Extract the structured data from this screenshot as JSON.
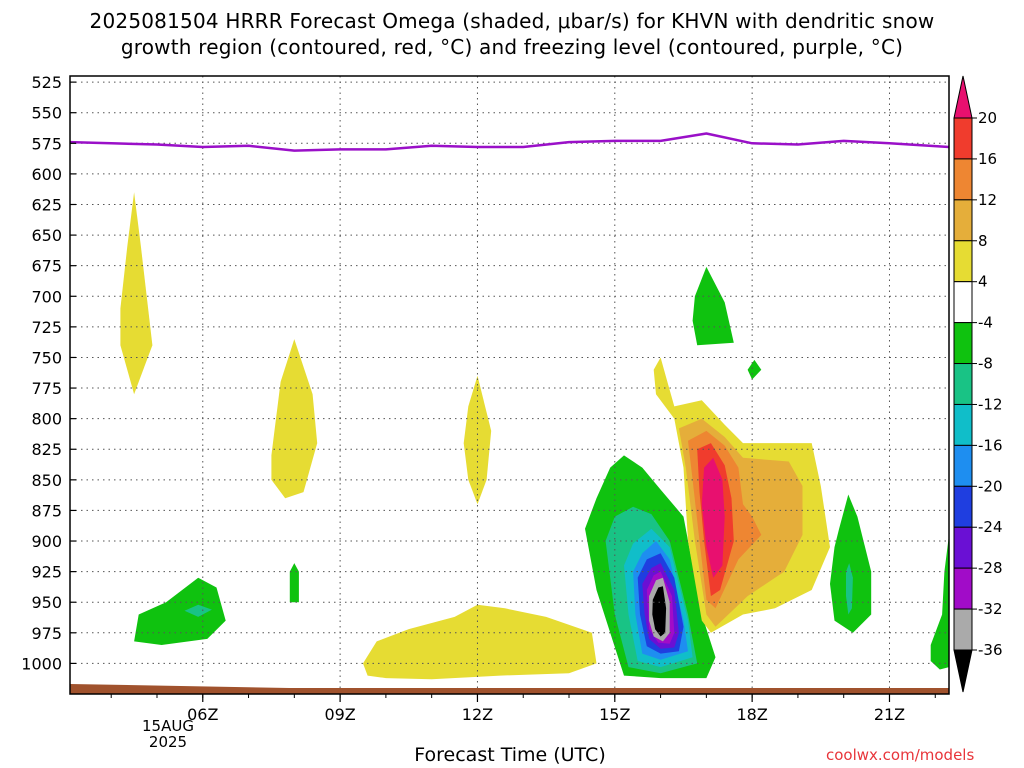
{
  "title_line1": "2025081504 HRRR Forecast Omega (shaded, μbar/s) for KHVN with dendritic snow",
  "title_line2": "growth region (contoured, red, °C) and freezing level (contoured, purple, °C)",
  "xlabel": "Forecast Time (UTC)",
  "date_line1": "15AUG",
  "date_line2": "2025",
  "credit": "coolwx.com/models",
  "chart_data": {
    "type": "heatmap",
    "ylim": [
      1025,
      520
    ],
    "xlim": [
      3.1,
      22.3
    ],
    "ylabel": "",
    "y_ticks": [
      525,
      550,
      575,
      600,
      625,
      650,
      675,
      700,
      725,
      750,
      775,
      800,
      825,
      850,
      875,
      900,
      925,
      950,
      975,
      1000
    ],
    "x_ticks": [
      {
        "hour": 6,
        "label": "06Z"
      },
      {
        "hour": 9,
        "label": "09Z"
      },
      {
        "hour": 12,
        "label": "12Z"
      },
      {
        "hour": 15,
        "label": "15Z"
      },
      {
        "hour": 18,
        "label": "18Z"
      },
      {
        "hour": 21,
        "label": "21Z"
      }
    ],
    "grid": true,
    "freezing_level": {
      "color": "#9a10c8",
      "points": [
        [
          3.1,
          574
        ],
        [
          4,
          575
        ],
        [
          5,
          576
        ],
        [
          6,
          578
        ],
        [
          7,
          577
        ],
        [
          8,
          581
        ],
        [
          9,
          580
        ],
        [
          10,
          580
        ],
        [
          11,
          577
        ],
        [
          12,
          578
        ],
        [
          13,
          578
        ],
        [
          14,
          574
        ],
        [
          15,
          573
        ],
        [
          16,
          573
        ],
        [
          17,
          567
        ],
        [
          18,
          575
        ],
        [
          19,
          576
        ],
        [
          20,
          573
        ],
        [
          21,
          575
        ],
        [
          22.3,
          578
        ]
      ]
    },
    "colorbar": {
      "levels": [
        20,
        16,
        12,
        8,
        4,
        -4,
        -8,
        -12,
        -16,
        -20,
        -24,
        -28,
        -32,
        -36
      ],
      "colors": [
        "#e8106f",
        "#f03c2d",
        "#ee8632",
        "#e5ae3a",
        "#e6dc33",
        "#ffffff",
        "#0fc20f",
        "#19c385",
        "#10bec9",
        "#1e8ef0",
        "#1f3ee0",
        "#6a10d4",
        "#a10cc8",
        "#aaaaaa",
        "#000000"
      ]
    },
    "regions": [
      {
        "value_range": [
          4,
          8
        ],
        "color": "#e6dc33",
        "points": [
          [
            4.2,
            710
          ],
          [
            4.35,
            660
          ],
          [
            4.5,
            615
          ],
          [
            4.65,
            660
          ],
          [
            4.9,
            740
          ],
          [
            4.5,
            780
          ],
          [
            4.2,
            740
          ]
        ]
      },
      {
        "value_range": [
          4,
          8
        ],
        "color": "#e6dc33",
        "points": [
          [
            7.5,
            830
          ],
          [
            7.7,
            770
          ],
          [
            8.0,
            735
          ],
          [
            8.4,
            780
          ],
          [
            8.5,
            820
          ],
          [
            8.2,
            860
          ],
          [
            7.8,
            865
          ],
          [
            7.5,
            850
          ]
        ]
      },
      {
        "value_range": [
          4,
          8
        ],
        "color": "#e6dc33",
        "points": [
          [
            11.7,
            820
          ],
          [
            11.8,
            790
          ],
          [
            12.0,
            765
          ],
          [
            12.3,
            810
          ],
          [
            12.2,
            850
          ],
          [
            12.0,
            870
          ],
          [
            11.8,
            850
          ]
        ]
      },
      {
        "value_range": [
          4,
          8
        ],
        "color": "#e6dc33",
        "points": [
          [
            9.5,
            1000
          ],
          [
            9.8,
            982
          ],
          [
            10.5,
            972
          ],
          [
            11.5,
            962
          ],
          [
            12.0,
            952
          ],
          [
            12.6,
            955
          ],
          [
            13.5,
            962
          ],
          [
            14.5,
            975
          ],
          [
            14.6,
            1000
          ],
          [
            14.0,
            1008
          ],
          [
            12.5,
            1010
          ],
          [
            11.0,
            1013
          ],
          [
            10.0,
            1012
          ],
          [
            9.6,
            1010
          ]
        ]
      },
      {
        "value_range": [
          -8,
          -4
        ],
        "color": "#0fc20f",
        "points": [
          [
            4.6,
            960
          ],
          [
            5.2,
            950
          ],
          [
            5.9,
            930
          ],
          [
            6.3,
            938
          ],
          [
            6.5,
            965
          ],
          [
            6.1,
            980
          ],
          [
            5.1,
            985
          ],
          [
            4.5,
            982
          ]
        ]
      },
      {
        "value_range": [
          -12,
          -8
        ],
        "color": "#19c385",
        "points": [
          [
            5.6,
            957
          ],
          [
            5.9,
            952
          ],
          [
            6.2,
            956
          ],
          [
            5.9,
            962
          ]
        ]
      },
      {
        "value_range": [
          -8,
          -4
        ],
        "color": "#0fc20f",
        "points": [
          [
            7.9,
            925
          ],
          [
            8.0,
            918
          ],
          [
            8.1,
            925
          ],
          [
            8.1,
            950
          ],
          [
            7.9,
            950
          ]
        ]
      },
      {
        "value_range": [
          -8,
          -4
        ],
        "color": "#0fc20f",
        "points": [
          [
            16.75,
            700
          ],
          [
            17.0,
            676
          ],
          [
            17.4,
            705
          ],
          [
            17.6,
            738
          ],
          [
            16.8,
            740
          ],
          [
            16.7,
            720
          ]
        ]
      },
      {
        "value_range": [
          -8,
          -4
        ],
        "color": "#0fc20f",
        "points": [
          [
            17.9,
            760
          ],
          [
            18.05,
            752
          ],
          [
            18.2,
            760
          ],
          [
            18.0,
            768
          ]
        ]
      },
      {
        "value_range": [
          -8,
          -4
        ],
        "color": "#0fc20f",
        "points": [
          [
            14.35,
            890
          ],
          [
            14.6,
            865
          ],
          [
            14.9,
            840
          ],
          [
            15.2,
            830
          ],
          [
            15.6,
            840
          ],
          [
            16.0,
            858
          ],
          [
            16.5,
            880
          ],
          [
            16.9,
            960
          ],
          [
            17.2,
            995
          ],
          [
            17.0,
            1012
          ],
          [
            16.0,
            1012
          ],
          [
            15.2,
            1010
          ],
          [
            14.9,
            975
          ],
          [
            14.6,
            940
          ]
        ]
      },
      {
        "value_range": [
          -12,
          -8
        ],
        "color": "#19c385",
        "points": [
          [
            14.8,
            900
          ],
          [
            15.0,
            880
          ],
          [
            15.4,
            872
          ],
          [
            15.8,
            878
          ],
          [
            16.2,
            900
          ],
          [
            16.6,
            960
          ],
          [
            16.8,
            1000
          ],
          [
            16.0,
            1008
          ],
          [
            15.3,
            1003
          ],
          [
            15.0,
            960
          ]
        ]
      },
      {
        "value_range": [
          -16,
          -12
        ],
        "color": "#10bec9",
        "points": [
          [
            15.2,
            920
          ],
          [
            15.4,
            902
          ],
          [
            15.8,
            890
          ],
          [
            16.2,
            905
          ],
          [
            16.6,
            965
          ],
          [
            16.7,
            995
          ],
          [
            16.0,
            1003
          ],
          [
            15.5,
            998
          ],
          [
            15.3,
            960
          ]
        ]
      },
      {
        "value_range": [
          -20,
          -16
        ],
        "color": "#1e8ef0",
        "points": [
          [
            15.4,
            925
          ],
          [
            15.6,
            910
          ],
          [
            15.9,
            900
          ],
          [
            16.2,
            915
          ],
          [
            16.5,
            965
          ],
          [
            16.6,
            990
          ],
          [
            16.0,
            997
          ],
          [
            15.6,
            992
          ],
          [
            15.45,
            960
          ]
        ]
      },
      {
        "value_range": [
          -24,
          -20
        ],
        "color": "#1f3ee0",
        "points": [
          [
            15.5,
            930
          ],
          [
            15.7,
            915
          ],
          [
            16.0,
            910
          ],
          [
            16.3,
            930
          ],
          [
            16.5,
            970
          ],
          [
            16.4,
            990
          ],
          [
            16.0,
            992
          ],
          [
            15.7,
            986
          ],
          [
            15.55,
            960
          ]
        ]
      },
      {
        "value_range": [
          -28,
          -24
        ],
        "color": "#6a10d4",
        "points": [
          [
            15.6,
            935
          ],
          [
            15.8,
            922
          ],
          [
            16.0,
            918
          ],
          [
            16.3,
            940
          ],
          [
            16.4,
            975
          ],
          [
            16.3,
            987
          ],
          [
            16.0,
            988
          ],
          [
            15.75,
            980
          ],
          [
            15.65,
            960
          ]
        ]
      },
      {
        "value_range": [
          -32,
          -28
        ],
        "color": "#a10cc8",
        "points": [
          [
            15.7,
            940
          ],
          [
            15.85,
            928
          ],
          [
            16.0,
            925
          ],
          [
            16.25,
            945
          ],
          [
            16.3,
            975
          ],
          [
            16.2,
            984
          ],
          [
            15.95,
            983
          ],
          [
            15.75,
            972
          ]
        ]
      },
      {
        "value_range": [
          -36,
          -32
        ],
        "color": "#aaaaaa",
        "points": [
          [
            15.75,
            945
          ],
          [
            15.9,
            932
          ],
          [
            16.05,
            930
          ],
          [
            16.2,
            950
          ],
          [
            16.2,
            975
          ],
          [
            16.05,
            982
          ],
          [
            15.85,
            978
          ],
          [
            15.75,
            965
          ]
        ]
      },
      {
        "value_range": [
          -40,
          -36
        ],
        "color": "#000000",
        "points": [
          [
            15.83,
            948
          ],
          [
            15.95,
            938
          ],
          [
            16.05,
            937
          ],
          [
            16.12,
            955
          ],
          [
            16.1,
            975
          ],
          [
            16.0,
            978
          ],
          [
            15.88,
            972
          ],
          [
            15.82,
            960
          ]
        ]
      },
      {
        "value_range": [
          4,
          8
        ],
        "color": "#e6dc33",
        "points": [
          [
            15.85,
            760
          ],
          [
            16.0,
            750
          ],
          [
            16.15,
            770
          ],
          [
            16.3,
            790
          ],
          [
            16.9,
            785
          ],
          [
            17.4,
            805
          ],
          [
            17.8,
            820
          ],
          [
            19.3,
            820
          ],
          [
            19.5,
            855
          ],
          [
            19.7,
            905
          ],
          [
            19.3,
            940
          ],
          [
            18.5,
            955
          ],
          [
            17.8,
            960
          ],
          [
            17.1,
            975
          ],
          [
            16.9,
            965
          ],
          [
            16.6,
            900
          ],
          [
            16.5,
            840
          ],
          [
            16.3,
            800
          ],
          [
            15.9,
            780
          ]
        ]
      },
      {
        "value_range": [
          8,
          12
        ],
        "color": "#e5ae3a",
        "points": [
          [
            16.4,
            808
          ],
          [
            16.9,
            800
          ],
          [
            17.4,
            815
          ],
          [
            17.8,
            832
          ],
          [
            18.8,
            835
          ],
          [
            19.1,
            855
          ],
          [
            19.1,
            895
          ],
          [
            18.7,
            925
          ],
          [
            17.9,
            945
          ],
          [
            17.2,
            970
          ],
          [
            17.0,
            960
          ],
          [
            16.75,
            900
          ],
          [
            16.55,
            840
          ]
        ]
      },
      {
        "value_range": [
          12,
          16
        ],
        "color": "#ee8632",
        "points": [
          [
            16.6,
            818
          ],
          [
            17.0,
            810
          ],
          [
            17.4,
            822
          ],
          [
            17.7,
            840
          ],
          [
            17.8,
            870
          ],
          [
            18.0,
            880
          ],
          [
            18.2,
            895
          ],
          [
            17.7,
            915
          ],
          [
            17.2,
            955
          ],
          [
            17.0,
            948
          ],
          [
            16.85,
            900
          ],
          [
            16.7,
            850
          ]
        ]
      },
      {
        "value_range": [
          16,
          20
        ],
        "color": "#f03c2d",
        "points": [
          [
            16.8,
            825
          ],
          [
            17.1,
            820
          ],
          [
            17.4,
            838
          ],
          [
            17.55,
            865
          ],
          [
            17.6,
            900
          ],
          [
            17.3,
            940
          ],
          [
            17.1,
            945
          ],
          [
            16.95,
            900
          ],
          [
            16.85,
            860
          ]
        ]
      },
      {
        "value_range": [
          20,
          24
        ],
        "color": "#e8106f",
        "points": [
          [
            16.95,
            840
          ],
          [
            17.15,
            832
          ],
          [
            17.35,
            850
          ],
          [
            17.4,
            880
          ],
          [
            17.35,
            920
          ],
          [
            17.15,
            930
          ],
          [
            17.0,
            905
          ],
          [
            16.9,
            870
          ]
        ]
      },
      {
        "value_range": [
          -8,
          -4
        ],
        "color": "#0fc20f",
        "points": [
          [
            19.9,
            890
          ],
          [
            20.1,
            862
          ],
          [
            20.3,
            880
          ],
          [
            20.6,
            925
          ],
          [
            20.6,
            960
          ],
          [
            20.2,
            975
          ],
          [
            19.8,
            965
          ],
          [
            19.7,
            935
          ],
          [
            19.8,
            905
          ]
        ]
      },
      {
        "value_range": [
          -12,
          -8
        ],
        "color": "#19c385",
        "points": [
          [
            20.05,
            925
          ],
          [
            20.12,
            918
          ],
          [
            20.2,
            930
          ],
          [
            20.18,
            955
          ],
          [
            20.1,
            960
          ],
          [
            20.05,
            945
          ]
        ]
      },
      {
        "value_range": [
          -8,
          -4
        ],
        "color": "#0fc20f",
        "points": [
          [
            21.9,
            985
          ],
          [
            22.15,
            960
          ],
          [
            22.2,
            925
          ],
          [
            22.3,
            895
          ],
          [
            22.3,
            1003
          ],
          [
            22.1,
            1005
          ],
          [
            21.9,
            998
          ]
        ]
      }
    ]
  }
}
